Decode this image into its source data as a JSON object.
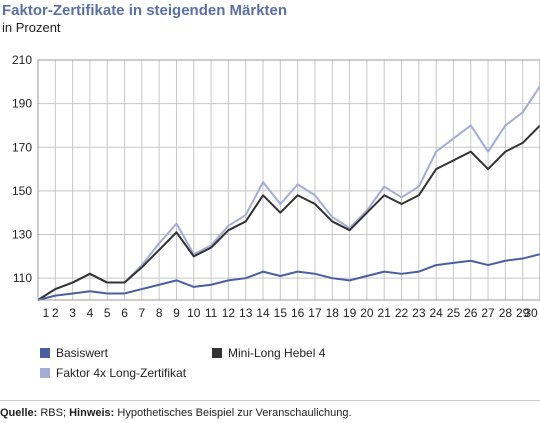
{
  "chart_data": {
    "type": "line",
    "title": "Faktor-Zertifikate in steigenden Märkten",
    "subtitle": "in Prozent",
    "x": [
      "1",
      "2",
      "3",
      "4",
      "5",
      "6",
      "7",
      "8",
      "9",
      "10",
      "11",
      "12",
      "13",
      "14",
      "15",
      "16",
      "17",
      "18",
      "19",
      "20",
      "21",
      "22",
      "23",
      "24",
      "25",
      "26",
      "27",
      "28",
      "29",
      "30"
    ],
    "y_ticks": [
      110,
      130,
      150,
      170,
      190,
      210
    ],
    "ylim": [
      100,
      210
    ],
    "grid": true,
    "legend_position": "bottom",
    "series": [
      {
        "name": "Basiswert",
        "color": "#4a5fa0",
        "values": [
          100,
          102,
          103,
          104,
          103,
          103,
          105,
          107,
          109,
          106,
          107,
          109,
          110,
          113,
          111,
          113,
          112,
          110,
          109,
          111,
          113,
          112,
          113,
          116,
          117,
          118,
          116,
          118,
          119,
          121
        ]
      },
      {
        "name": "Mini-Long Hebel 4",
        "color": "#333333",
        "values": [
          100,
          105,
          108,
          112,
          108,
          108,
          115,
          123,
          131,
          120,
          124,
          132,
          136,
          148,
          140,
          148,
          144,
          136,
          132,
          140,
          148,
          144,
          148,
          160,
          164,
          168,
          160,
          168,
          172,
          180
        ]
      },
      {
        "name": "Faktor 4x Long-Zertifikat",
        "color": "#a3acd6",
        "values": [
          100,
          105,
          108,
          112,
          108,
          108,
          116,
          126,
          135,
          121,
          125,
          134,
          139,
          154,
          144,
          153,
          148,
          138,
          133,
          141,
          152,
          147,
          152,
          168,
          174,
          180,
          168,
          180,
          186,
          198
        ]
      }
    ]
  },
  "footer": {
    "source_label": "Quelle:",
    "source_value": " RBS; ",
    "note_label": "Hinweis:",
    "note_value": " Hypothetisches Beispiel zur Veranschaulichung."
  }
}
